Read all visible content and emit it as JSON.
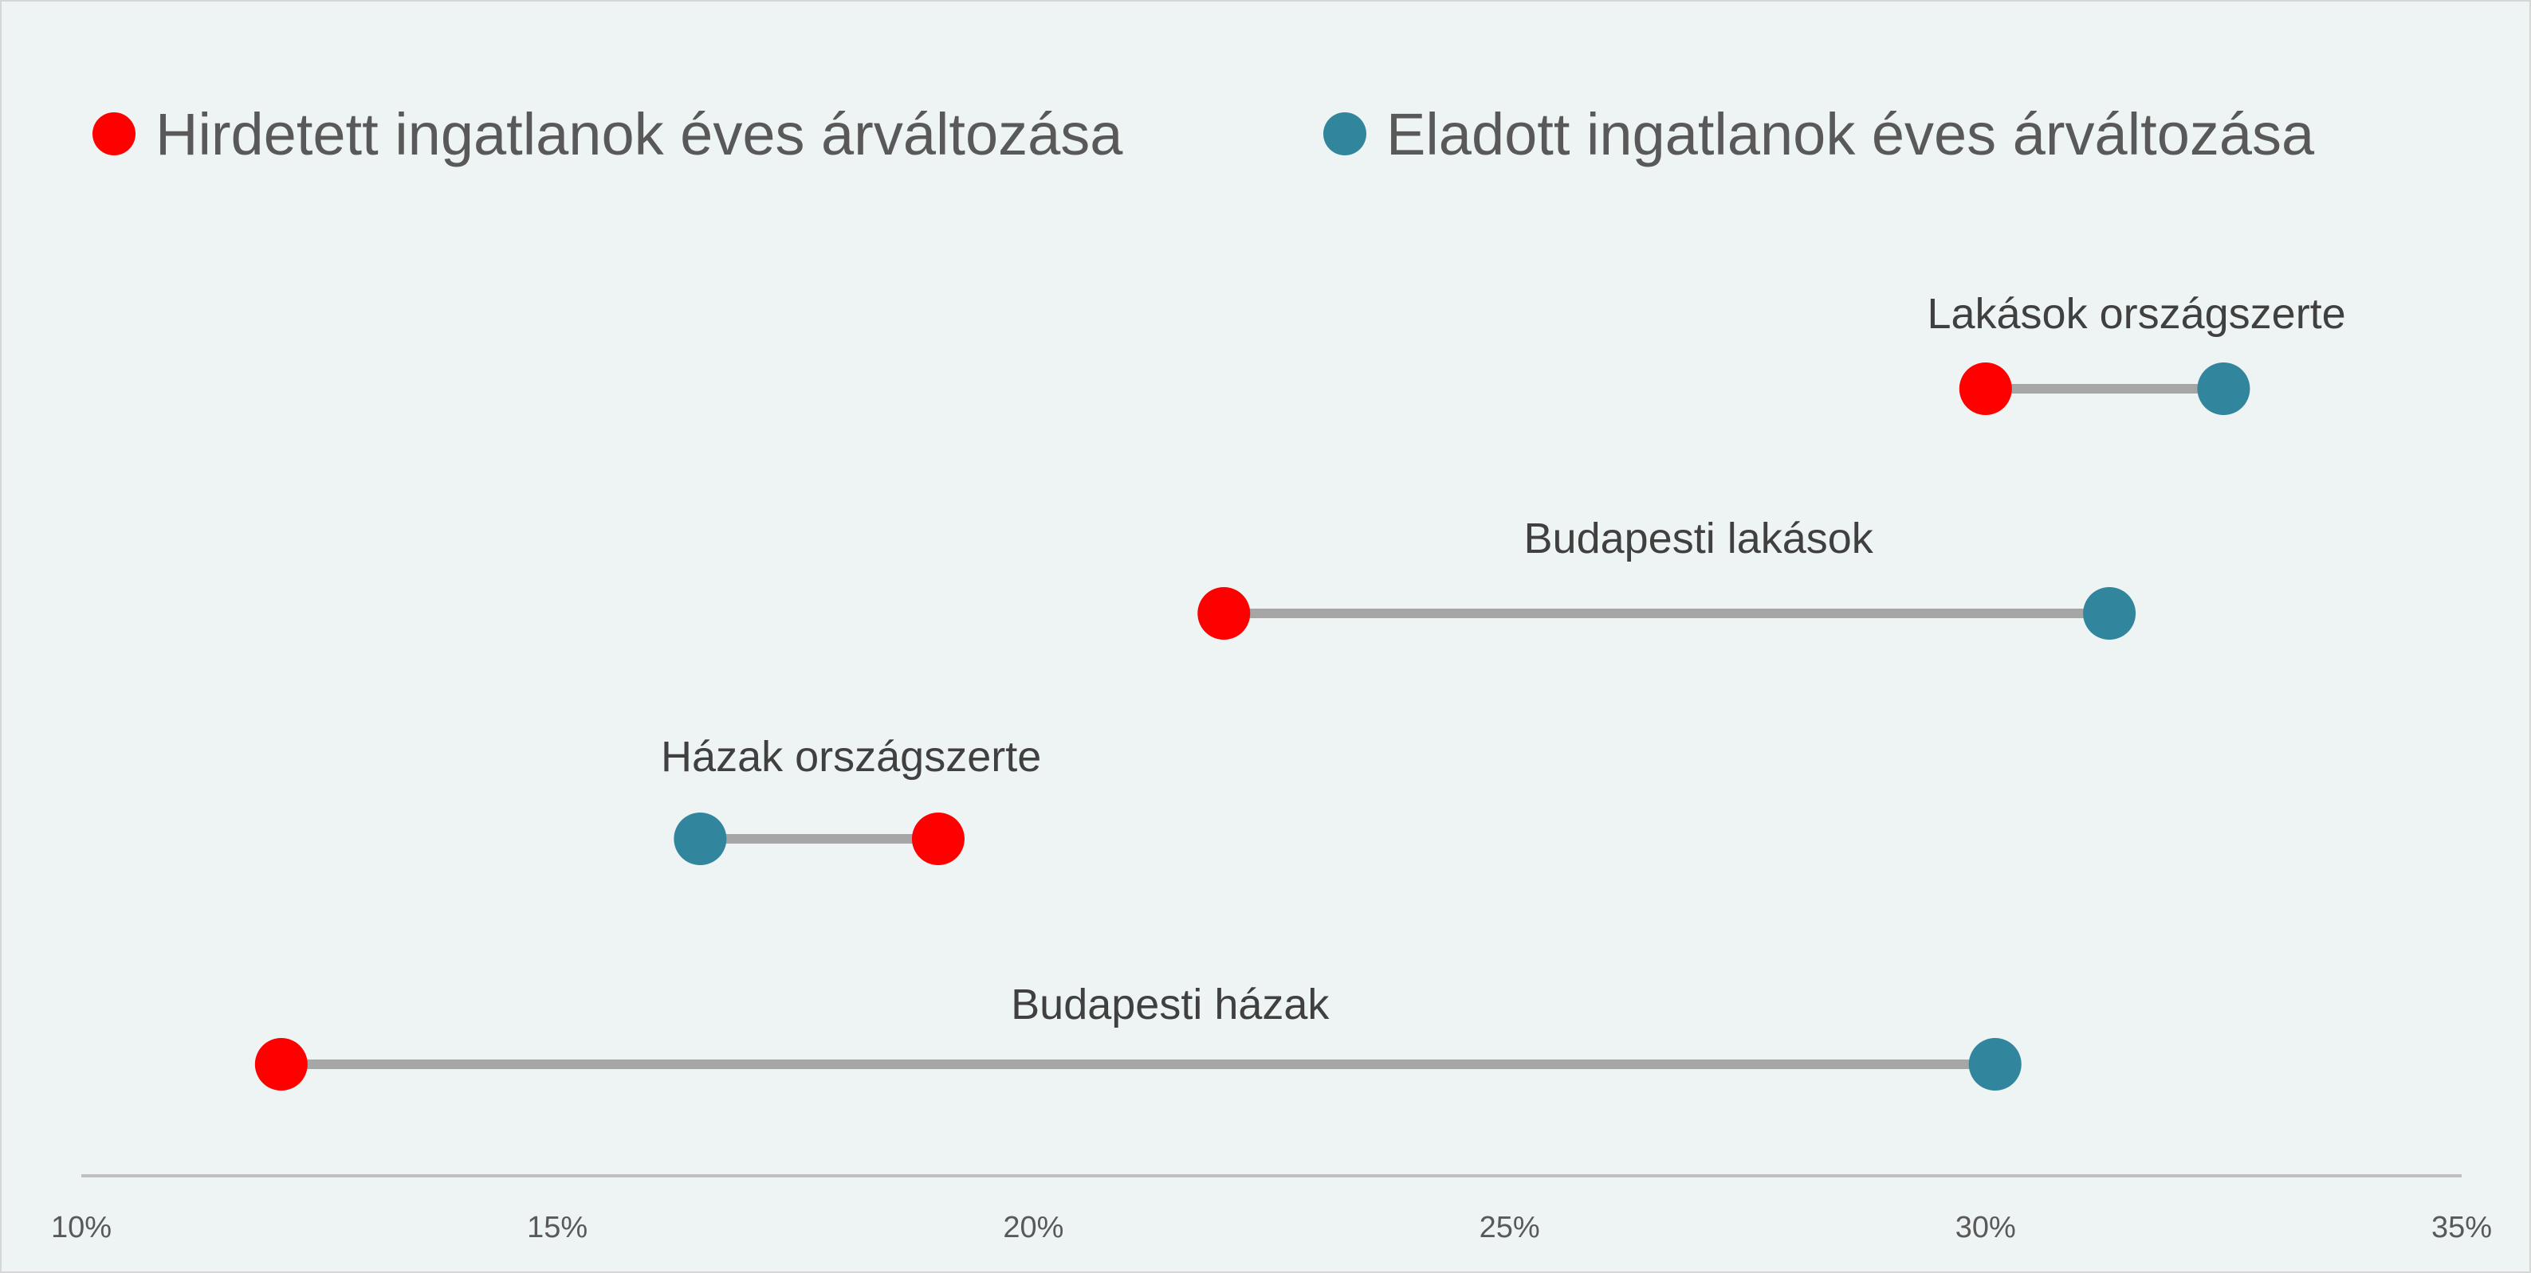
{
  "chart_data": {
    "type": "dumbbell",
    "title": "",
    "xlabel": "",
    "ylabel": "",
    "xlim": [
      10,
      35
    ],
    "x_ticks": [
      "10%",
      "15%",
      "20%",
      "25%",
      "30%",
      "35%"
    ],
    "x_tick_values": [
      10,
      15,
      20,
      25,
      30,
      35
    ],
    "legend_position": "top",
    "series": [
      {
        "name": "Hirdetett ingatlanok éves árváltozása",
        "color": "#ff0000"
      },
      {
        "name": "Eladott ingatlanok éves árváltozása",
        "color": "#31859c"
      }
    ],
    "categories": [
      "Lakások országszerte",
      "Budapesti lakások",
      "Házak országszerte",
      "Budapesti házak"
    ],
    "values": {
      "Hirdetett ingatlanok éves árváltozása": [
        30.0,
        22.0,
        19.0,
        12.1
      ],
      "Eladott ingatlanok éves árváltozása": [
        32.5,
        31.3,
        16.5,
        30.1
      ]
    },
    "connector_color": "#a6a6a6",
    "grid": false
  }
}
